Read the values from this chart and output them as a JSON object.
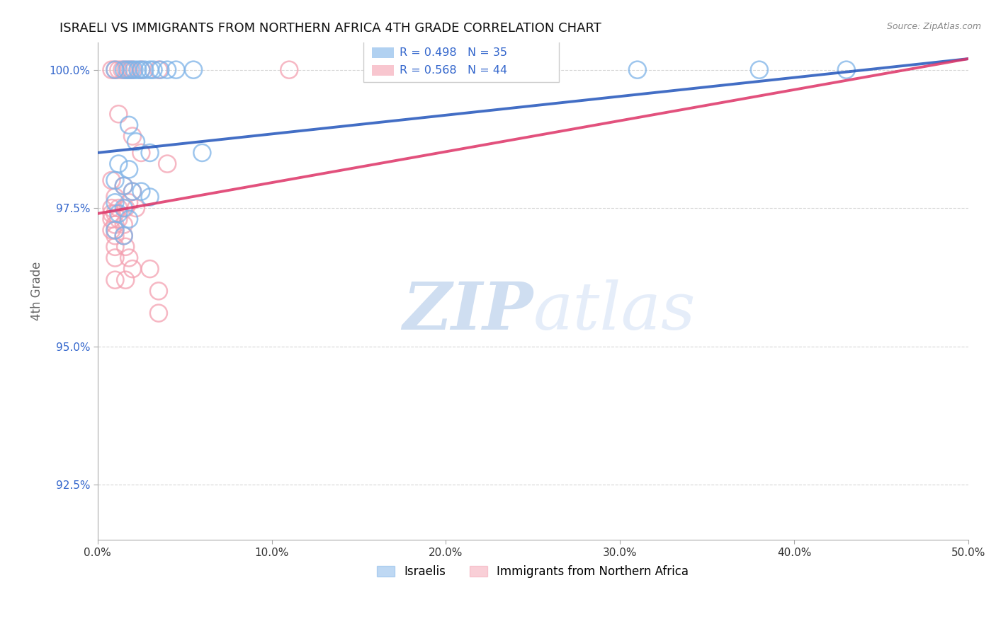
{
  "title": "ISRAELI VS IMMIGRANTS FROM NORTHERN AFRICA 4TH GRADE CORRELATION CHART",
  "source": "Source: ZipAtlas.com",
  "xlabel": "",
  "ylabel": "4th Grade",
  "xlim": [
    0.0,
    0.5
  ],
  "ylim": [
    0.915,
    1.005
  ],
  "xtick_labels": [
    "0.0%",
    "10.0%",
    "20.0%",
    "30.0%",
    "40.0%",
    "50.0%"
  ],
  "xtick_vals": [
    0.0,
    0.1,
    0.2,
    0.3,
    0.4,
    0.5
  ],
  "ytick_labels": [
    "92.5%",
    "95.0%",
    "97.5%",
    "100.0%"
  ],
  "ytick_vals": [
    0.925,
    0.95,
    0.975,
    1.0
  ],
  "legend_label1": "Israelis",
  "legend_label2": "Immigrants from Northern Africa",
  "R1": 0.498,
  "N1": 35,
  "R2": 0.568,
  "N2": 44,
  "color_blue": "#7EB3E8",
  "color_pink": "#F4A0B0",
  "color_blue_line": "#2255BB",
  "color_pink_line": "#DD3366",
  "color_text_blue": "#3366CC",
  "blue_line": [
    [
      0.0,
      0.985
    ],
    [
      0.5,
      1.002
    ]
  ],
  "pink_line": [
    [
      0.0,
      0.974
    ],
    [
      0.5,
      1.002
    ]
  ],
  "scatter_blue": [
    [
      0.01,
      1.0
    ],
    [
      0.015,
      1.0
    ],
    [
      0.017,
      1.0
    ],
    [
      0.019,
      1.0
    ],
    [
      0.021,
      1.0
    ],
    [
      0.023,
      1.0
    ],
    [
      0.025,
      1.0
    ],
    [
      0.027,
      1.0
    ],
    [
      0.03,
      1.0
    ],
    [
      0.032,
      1.0
    ],
    [
      0.036,
      1.0
    ],
    [
      0.04,
      1.0
    ],
    [
      0.045,
      1.0
    ],
    [
      0.055,
      1.0
    ],
    [
      0.175,
      1.0
    ],
    [
      0.31,
      1.0
    ],
    [
      0.38,
      1.0
    ],
    [
      0.43,
      1.0
    ],
    [
      0.018,
      0.99
    ],
    [
      0.022,
      0.987
    ],
    [
      0.03,
      0.985
    ],
    [
      0.012,
      0.983
    ],
    [
      0.018,
      0.982
    ],
    [
      0.01,
      0.98
    ],
    [
      0.015,
      0.979
    ],
    [
      0.02,
      0.978
    ],
    [
      0.025,
      0.978
    ],
    [
      0.03,
      0.977
    ],
    [
      0.01,
      0.976
    ],
    [
      0.015,
      0.975
    ],
    [
      0.012,
      0.974
    ],
    [
      0.018,
      0.973
    ],
    [
      0.01,
      0.971
    ],
    [
      0.015,
      0.97
    ],
    [
      0.06,
      0.985
    ]
  ],
  "scatter_pink": [
    [
      0.008,
      1.0
    ],
    [
      0.01,
      1.0
    ],
    [
      0.012,
      1.0
    ],
    [
      0.014,
      1.0
    ],
    [
      0.016,
      1.0
    ],
    [
      0.018,
      1.0
    ],
    [
      0.02,
      1.0
    ],
    [
      0.025,
      1.0
    ],
    [
      0.035,
      1.0
    ],
    [
      0.11,
      1.0
    ],
    [
      0.25,
      1.0
    ],
    [
      0.012,
      0.992
    ],
    [
      0.02,
      0.988
    ],
    [
      0.025,
      0.985
    ],
    [
      0.04,
      0.983
    ],
    [
      0.008,
      0.98
    ],
    [
      0.015,
      0.979
    ],
    [
      0.02,
      0.978
    ],
    [
      0.01,
      0.977
    ],
    [
      0.018,
      0.976
    ],
    [
      0.008,
      0.975
    ],
    [
      0.012,
      0.975
    ],
    [
      0.016,
      0.975
    ],
    [
      0.022,
      0.975
    ],
    [
      0.008,
      0.974
    ],
    [
      0.01,
      0.974
    ],
    [
      0.008,
      0.973
    ],
    [
      0.012,
      0.973
    ],
    [
      0.01,
      0.972
    ],
    [
      0.015,
      0.972
    ],
    [
      0.008,
      0.971
    ],
    [
      0.01,
      0.971
    ],
    [
      0.01,
      0.97
    ],
    [
      0.015,
      0.97
    ],
    [
      0.01,
      0.968
    ],
    [
      0.016,
      0.968
    ],
    [
      0.01,
      0.966
    ],
    [
      0.018,
      0.966
    ],
    [
      0.02,
      0.964
    ],
    [
      0.03,
      0.964
    ],
    [
      0.01,
      0.962
    ],
    [
      0.016,
      0.962
    ],
    [
      0.035,
      0.96
    ],
    [
      0.035,
      0.956
    ]
  ],
  "watermark_zip": "ZIP",
  "watermark_atlas": "atlas",
  "background_color": "#ffffff",
  "grid_color": "#cccccc"
}
